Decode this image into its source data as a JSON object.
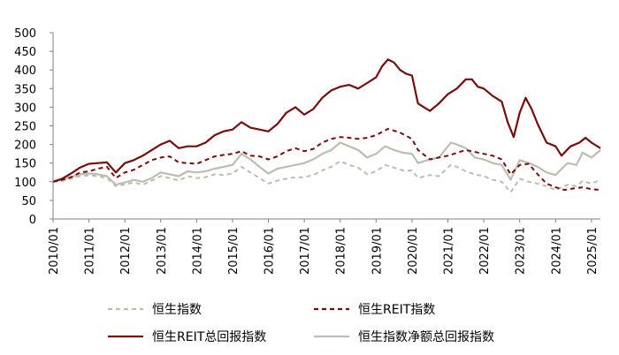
{
  "chart_data": {
    "type": "line",
    "title": "",
    "xlabel": "",
    "ylabel": "",
    "ylim": [
      0,
      500
    ],
    "yticks": [
      "0",
      "50",
      "100",
      "150",
      "200",
      "250",
      "300",
      "350",
      "400",
      "450",
      "500"
    ],
    "xlim": [
      "2010-01",
      "2025-04"
    ],
    "xticks": [
      "2010/01",
      "2011/01",
      "2012/01",
      "2013/01",
      "2014/01",
      "2015/01",
      "2016/01",
      "2017/01",
      "2018/01",
      "2019/01",
      "2020/01",
      "2021/01",
      "2022/01",
      "2023/01",
      "2024/01",
      "2025/01"
    ],
    "grid": false,
    "legend_position": "bottom",
    "series": [
      {
        "name": "恒生REIT总回报指数",
        "color": "#7b0c0c",
        "style": "solid",
        "points": [
          [
            "2010-01",
            100
          ],
          [
            "2010-04",
            108
          ],
          [
            "2010-07",
            122
          ],
          [
            "2010-10",
            138
          ],
          [
            "2011-01",
            148
          ],
          [
            "2011-04",
            150
          ],
          [
            "2011-07",
            152
          ],
          [
            "2011-10",
            125
          ],
          [
            "2012-01",
            150
          ],
          [
            "2012-04",
            158
          ],
          [
            "2012-07",
            170
          ],
          [
            "2012-10",
            185
          ],
          [
            "2013-01",
            200
          ],
          [
            "2013-04",
            210
          ],
          [
            "2013-07",
            190
          ],
          [
            "2013-10",
            195
          ],
          [
            "2014-01",
            195
          ],
          [
            "2014-04",
            205
          ],
          [
            "2014-07",
            225
          ],
          [
            "2014-10",
            235
          ],
          [
            "2015-01",
            240
          ],
          [
            "2015-04",
            260
          ],
          [
            "2015-07",
            245
          ],
          [
            "2015-10",
            240
          ],
          [
            "2016-01",
            235
          ],
          [
            "2016-04",
            255
          ],
          [
            "2016-07",
            285
          ],
          [
            "2016-10",
            300
          ],
          [
            "2017-01",
            280
          ],
          [
            "2017-04",
            295
          ],
          [
            "2017-07",
            325
          ],
          [
            "2017-10",
            345
          ],
          [
            "2018-01",
            355
          ],
          [
            "2018-04",
            360
          ],
          [
            "2018-07",
            350
          ],
          [
            "2018-10",
            365
          ],
          [
            "2019-01",
            380
          ],
          [
            "2019-03",
            410
          ],
          [
            "2019-05",
            428
          ],
          [
            "2019-07",
            420
          ],
          [
            "2019-09",
            400
          ],
          [
            "2019-11",
            390
          ],
          [
            "2020-01",
            385
          ],
          [
            "2020-03",
            310
          ],
          [
            "2020-05",
            300
          ],
          [
            "2020-07",
            290
          ],
          [
            "2020-10",
            310
          ],
          [
            "2021-01",
            335
          ],
          [
            "2021-04",
            350
          ],
          [
            "2021-07",
            375
          ],
          [
            "2021-09",
            375
          ],
          [
            "2021-11",
            355
          ],
          [
            "2022-01",
            350
          ],
          [
            "2022-04",
            330
          ],
          [
            "2022-07",
            315
          ],
          [
            "2022-09",
            260
          ],
          [
            "2022-11",
            220
          ],
          [
            "2023-01",
            285
          ],
          [
            "2023-03",
            325
          ],
          [
            "2023-05",
            295
          ],
          [
            "2023-07",
            255
          ],
          [
            "2023-10",
            205
          ],
          [
            "2024-01",
            195
          ],
          [
            "2024-03",
            170
          ],
          [
            "2024-06",
            195
          ],
          [
            "2024-09",
            205
          ],
          [
            "2024-11",
            218
          ],
          [
            "2025-01",
            205
          ],
          [
            "2025-04",
            190
          ]
        ]
      },
      {
        "name": "恒生REIT指数",
        "color": "#7b0c0c",
        "style": "dashed",
        "points": [
          [
            "2010-01",
            100
          ],
          [
            "2010-04",
            105
          ],
          [
            "2010-07",
            112
          ],
          [
            "2010-10",
            125
          ],
          [
            "2011-01",
            128
          ],
          [
            "2011-04",
            135
          ],
          [
            "2011-07",
            140
          ],
          [
            "2011-10",
            110
          ],
          [
            "2012-01",
            125
          ],
          [
            "2012-04",
            132
          ],
          [
            "2012-07",
            145
          ],
          [
            "2012-10",
            158
          ],
          [
            "2013-01",
            165
          ],
          [
            "2013-04",
            168
          ],
          [
            "2013-07",
            152
          ],
          [
            "2013-10",
            150
          ],
          [
            "2014-01",
            148
          ],
          [
            "2014-04",
            158
          ],
          [
            "2014-07",
            168
          ],
          [
            "2014-10",
            172
          ],
          [
            "2015-01",
            175
          ],
          [
            "2015-04",
            182
          ],
          [
            "2015-07",
            170
          ],
          [
            "2015-10",
            168
          ],
          [
            "2016-01",
            160
          ],
          [
            "2016-04",
            168
          ],
          [
            "2016-07",
            182
          ],
          [
            "2016-10",
            190
          ],
          [
            "2017-01",
            182
          ],
          [
            "2017-04",
            188
          ],
          [
            "2017-07",
            205
          ],
          [
            "2017-10",
            215
          ],
          [
            "2018-01",
            220
          ],
          [
            "2018-04",
            218
          ],
          [
            "2018-07",
            215
          ],
          [
            "2018-10",
            218
          ],
          [
            "2019-01",
            225
          ],
          [
            "2019-05",
            242
          ],
          [
            "2019-09",
            232
          ],
          [
            "2020-01",
            215
          ],
          [
            "2020-03",
            185
          ],
          [
            "2020-07",
            160
          ],
          [
            "2020-10",
            165
          ],
          [
            "2021-01",
            170
          ],
          [
            "2021-07",
            185
          ],
          [
            "2021-10",
            180
          ],
          [
            "2022-01",
            175
          ],
          [
            "2022-04",
            170
          ],
          [
            "2022-07",
            160
          ],
          [
            "2022-10",
            120
          ],
          [
            "2023-01",
            145
          ],
          [
            "2023-04",
            148
          ],
          [
            "2023-07",
            120
          ],
          [
            "2023-10",
            95
          ],
          [
            "2024-01",
            85
          ],
          [
            "2024-04",
            78
          ],
          [
            "2024-07",
            82
          ],
          [
            "2024-10",
            85
          ],
          [
            "2025-01",
            80
          ],
          [
            "2025-04",
            78
          ]
        ]
      },
      {
        "name": "恒生指数净额总回报指数",
        "color": "#bdbdb0",
        "style": "solid",
        "points": [
          [
            "2010-01",
            100
          ],
          [
            "2010-04",
            105
          ],
          [
            "2010-07",
            112
          ],
          [
            "2010-10",
            120
          ],
          [
            "2011-01",
            122
          ],
          [
            "2011-04",
            120
          ],
          [
            "2011-07",
            115
          ],
          [
            "2011-10",
            92
          ],
          [
            "2012-01",
            98
          ],
          [
            "2012-04",
            105
          ],
          [
            "2012-07",
            100
          ],
          [
            "2012-10",
            110
          ],
          [
            "2013-01",
            125
          ],
          [
            "2013-04",
            120
          ],
          [
            "2013-07",
            115
          ],
          [
            "2013-10",
            128
          ],
          [
            "2014-01",
            125
          ],
          [
            "2014-04",
            128
          ],
          [
            "2014-07",
            135
          ],
          [
            "2014-10",
            140
          ],
          [
            "2015-01",
            145
          ],
          [
            "2015-04",
            175
          ],
          [
            "2015-07",
            160
          ],
          [
            "2015-10",
            140
          ],
          [
            "2016-01",
            122
          ],
          [
            "2016-04",
            135
          ],
          [
            "2016-07",
            140
          ],
          [
            "2016-10",
            145
          ],
          [
            "2017-01",
            150
          ],
          [
            "2017-04",
            160
          ],
          [
            "2017-07",
            175
          ],
          [
            "2017-10",
            185
          ],
          [
            "2018-01",
            205
          ],
          [
            "2018-04",
            195
          ],
          [
            "2018-07",
            185
          ],
          [
            "2018-10",
            165
          ],
          [
            "2019-01",
            175
          ],
          [
            "2019-04",
            195
          ],
          [
            "2019-07",
            185
          ],
          [
            "2019-10",
            178
          ],
          [
            "2020-01",
            175
          ],
          [
            "2020-03",
            150
          ],
          [
            "2020-07",
            160
          ],
          [
            "2020-10",
            165
          ],
          [
            "2021-01",
            195
          ],
          [
            "2021-02",
            205
          ],
          [
            "2021-04",
            200
          ],
          [
            "2021-07",
            190
          ],
          [
            "2021-10",
            165
          ],
          [
            "2022-01",
            160
          ],
          [
            "2022-04",
            150
          ],
          [
            "2022-07",
            145
          ],
          [
            "2022-10",
            105
          ],
          [
            "2023-01",
            158
          ],
          [
            "2023-04",
            150
          ],
          [
            "2023-07",
            140
          ],
          [
            "2023-10",
            125
          ],
          [
            "2024-01",
            118
          ],
          [
            "2024-05",
            150
          ],
          [
            "2024-08",
            145
          ],
          [
            "2024-10",
            178
          ],
          [
            "2025-01",
            165
          ],
          [
            "2025-04",
            185
          ]
        ]
      },
      {
        "name": "恒生指数",
        "color": "#bdbdb0",
        "style": "dashed",
        "points": [
          [
            "2010-01",
            100
          ],
          [
            "2010-04",
            102
          ],
          [
            "2010-07",
            108
          ],
          [
            "2010-10",
            115
          ],
          [
            "2011-01",
            117
          ],
          [
            "2011-04",
            115
          ],
          [
            "2011-07",
            110
          ],
          [
            "2011-10",
            88
          ],
          [
            "2012-01",
            93
          ],
          [
            "2012-04",
            98
          ],
          [
            "2012-07",
            92
          ],
          [
            "2012-10",
            103
          ],
          [
            "2013-01",
            115
          ],
          [
            "2013-04",
            110
          ],
          [
            "2013-07",
            103
          ],
          [
            "2013-10",
            115
          ],
          [
            "2014-01",
            110
          ],
          [
            "2014-04",
            112
          ],
          [
            "2014-07",
            120
          ],
          [
            "2014-10",
            118
          ],
          [
            "2015-01",
            122
          ],
          [
            "2015-04",
            140
          ],
          [
            "2015-07",
            125
          ],
          [
            "2015-10",
            110
          ],
          [
            "2016-01",
            95
          ],
          [
            "2016-04",
            103
          ],
          [
            "2016-07",
            108
          ],
          [
            "2016-10",
            112
          ],
          [
            "2017-01",
            112
          ],
          [
            "2017-04",
            118
          ],
          [
            "2017-07",
            130
          ],
          [
            "2017-10",
            140
          ],
          [
            "2018-01",
            155
          ],
          [
            "2018-04",
            145
          ],
          [
            "2018-07",
            138
          ],
          [
            "2018-10",
            120
          ],
          [
            "2019-01",
            128
          ],
          [
            "2019-04",
            145
          ],
          [
            "2019-07",
            138
          ],
          [
            "2019-10",
            130
          ],
          [
            "2020-01",
            130
          ],
          [
            "2020-03",
            110
          ],
          [
            "2020-07",
            118
          ],
          [
            "2020-10",
            115
          ],
          [
            "2021-01",
            138
          ],
          [
            "2021-02",
            145
          ],
          [
            "2021-04",
            140
          ],
          [
            "2021-07",
            128
          ],
          [
            "2021-10",
            120
          ],
          [
            "2022-01",
            115
          ],
          [
            "2022-04",
            105
          ],
          [
            "2022-07",
            100
          ],
          [
            "2022-10",
            72
          ],
          [
            "2023-01",
            108
          ],
          [
            "2023-04",
            100
          ],
          [
            "2023-07",
            95
          ],
          [
            "2023-10",
            88
          ],
          [
            "2024-01",
            78
          ],
          [
            "2024-05",
            92
          ],
          [
            "2024-08",
            88
          ],
          [
            "2024-10",
            102
          ],
          [
            "2025-01",
            95
          ],
          [
            "2025-04",
            105
          ]
        ]
      }
    ],
    "legend": [
      {
        "label": "恒生指数",
        "series_index": 3
      },
      {
        "label": "恒生REIT指数",
        "series_index": 1
      },
      {
        "label": "恒生REIT总回报指数",
        "series_index": 0
      },
      {
        "label": "恒生指数净额总回报指数",
        "series_index": 2
      }
    ]
  }
}
